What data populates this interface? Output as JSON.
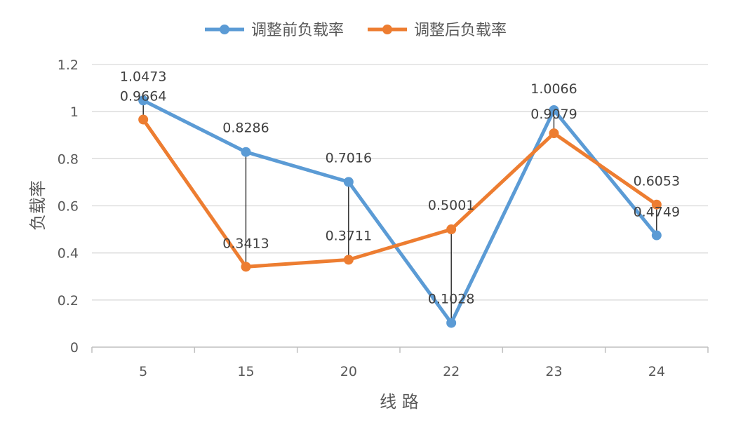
{
  "chart_data": {
    "type": "line",
    "title": "",
    "xlabel": "线 路",
    "ylabel": "负载率",
    "categories": [
      "5",
      "15",
      "20",
      "22",
      "23",
      "24"
    ],
    "y_ticks": [
      "0",
      "0.2",
      "0.4",
      "0.6",
      "0.8",
      "1",
      "1.2"
    ],
    "ylim": [
      0,
      1.2
    ],
    "grid": true,
    "legend_position": "top",
    "drop_lines": true,
    "series": [
      {
        "name": "调整前负载率",
        "color": "#5B9BD5",
        "values": [
          1.0473,
          0.8286,
          0.7016,
          0.1028,
          1.0066,
          0.4749
        ],
        "labels": [
          "1.0473",
          "0.8286",
          "0.7016",
          "0.1028",
          "1.0066",
          "0.4749"
        ]
      },
      {
        "name": "调整后负载率",
        "color": "#ED7D31",
        "values": [
          0.9664,
          0.3413,
          0.3711,
          0.5001,
          0.9079,
          0.6053
        ],
        "labels": [
          "0.9664",
          "0.3413",
          "0.3711",
          "0.5001",
          "0.9079",
          "0.6053"
        ]
      }
    ]
  }
}
